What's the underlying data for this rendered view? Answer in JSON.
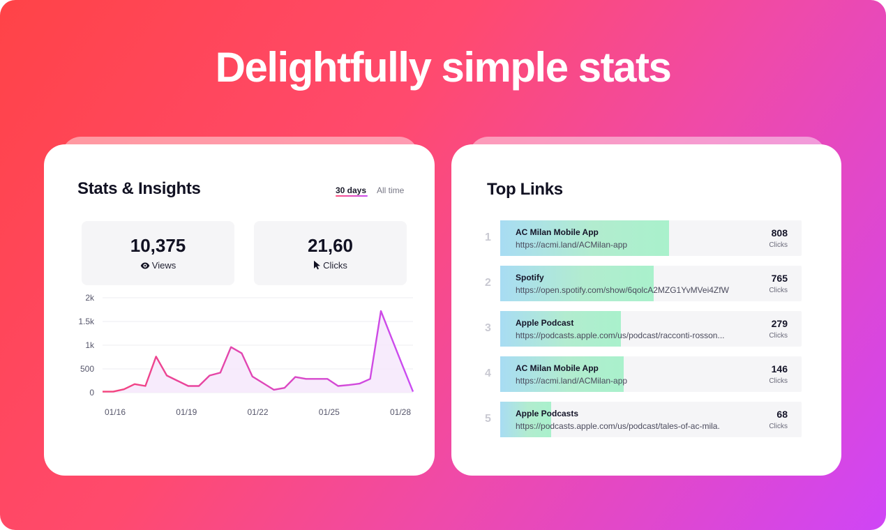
{
  "headline": "Delightfully simple stats",
  "stats": {
    "title": "Stats & Insights",
    "ranges": [
      {
        "label": "30 days",
        "active": true
      },
      {
        "label": "All time",
        "active": false
      }
    ],
    "metrics": [
      {
        "value": "10,375",
        "label": "Views",
        "icon": "eye-icon"
      },
      {
        "value": "21,60",
        "label": "Clicks",
        "icon": "cursor-icon"
      }
    ]
  },
  "chart_data": {
    "type": "area",
    "y_ticks": [
      "2k",
      "1.5k",
      "1k",
      "500",
      "0"
    ],
    "ylim": [
      0,
      2000
    ],
    "x_tick_labels": [
      "01/16",
      "01/19",
      "01/22",
      "01/25",
      "01/28"
    ],
    "values": [
      20,
      20,
      70,
      180,
      140,
      760,
      360,
      250,
      140,
      140,
      360,
      420,
      960,
      830,
      340,
      200,
      60,
      100,
      330,
      290,
      290,
      290,
      140,
      160,
      190,
      290,
      1720,
      1150,
      580,
      20
    ],
    "line_gradient": [
      "#f5427a",
      "#c94bf3"
    ],
    "fill_color": "#f6e8fb",
    "grid": true
  },
  "top_links": {
    "title": "Top Links",
    "count_label": "Clicks",
    "items": [
      {
        "rank": "1",
        "name": "AC Milan Mobile App",
        "url": "https://acmi.land/ACMilan-app",
        "clicks": "808",
        "fill": 0.56
      },
      {
        "rank": "2",
        "name": "Spotify",
        "url": "https://open.spotify.com/show/6qolcA2MZG1YvMVei4ZfW",
        "clicks": "765",
        "fill": 0.51
      },
      {
        "rank": "3",
        "name": "Apple Podcast",
        "url": "https://podcasts.apple.com/us/podcast/racconti-rosson...",
        "clicks": "279",
        "fill": 0.4
      },
      {
        "rank": "4",
        "name": "AC Milan Mobile App",
        "url": "https://acmi.land/ACMilan-app",
        "clicks": "146",
        "fill": 0.41
      },
      {
        "rank": "5",
        "name": "Apple Podcasts",
        "url": "https://podcasts.apple.com/us/podcast/tales-of-ac-mila.",
        "clicks": "68",
        "fill": 0.17
      }
    ]
  }
}
